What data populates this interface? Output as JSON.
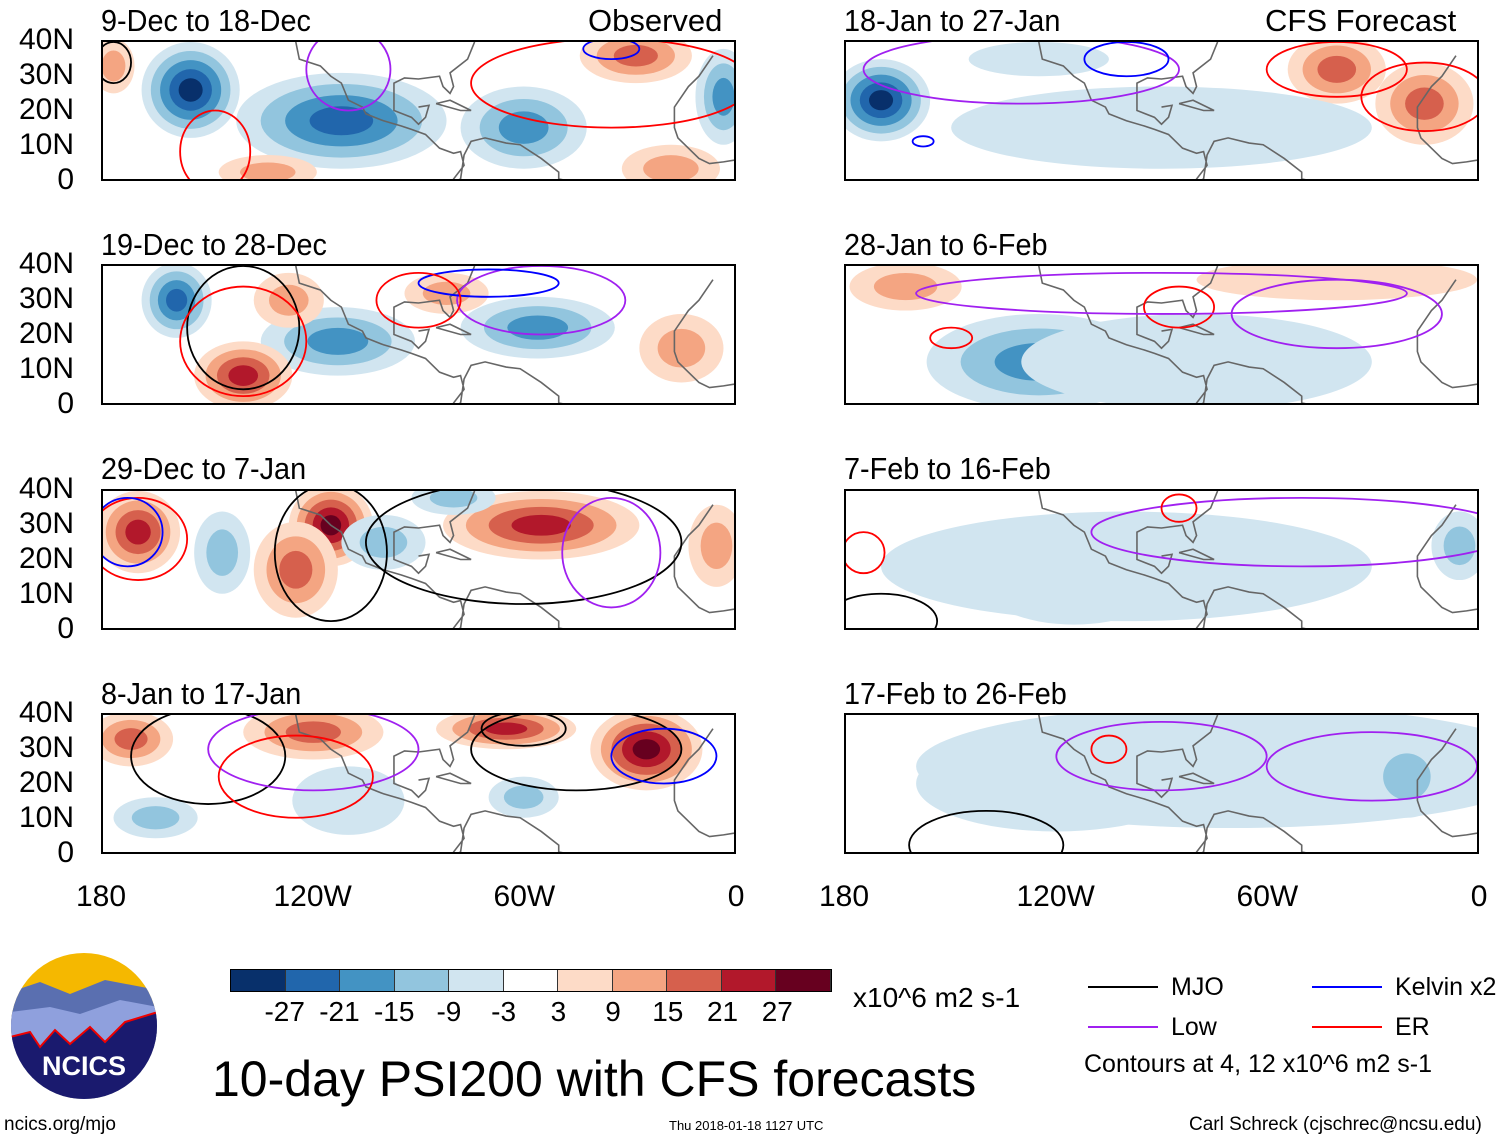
{
  "title": "10-day PSI200 with CFS forecasts",
  "observed_label": "Observed",
  "forecast_label": "CFS Forecast",
  "lat_labels": [
    "40N",
    "30N",
    "20N",
    "10N",
    "0"
  ],
  "lon_labels": [
    "180",
    "120W",
    "60W",
    "0"
  ],
  "colorbar": {
    "colors": [
      "#08306b",
      "#2166ac",
      "#4393c3",
      "#92c5de",
      "#d1e5f0",
      "#ffffff",
      "#fddbc7",
      "#f4a582",
      "#d6604d",
      "#b2182b",
      "#67001f"
    ],
    "labels": [
      "-27",
      "-21",
      "-15",
      "-9",
      "-3",
      "3",
      "9",
      "15",
      "21",
      "27"
    ],
    "units": "x10^6 m2 s-1"
  },
  "legend": {
    "items": [
      {
        "label": "MJO",
        "color": "#000000"
      },
      {
        "label": "Kelvin x2",
        "color": "#0000ff"
      },
      {
        "label": "Low",
        "color": "#a020f0"
      },
      {
        "label": "ER",
        "color": "#ff0000"
      }
    ],
    "note": "Contours at 4, 12 x10^6 m2 s-1"
  },
  "logo": {
    "text": "NCICS"
  },
  "footer": {
    "left": "ncics.org/mjo",
    "center": "Thu 2018-01-18 1127 UTC",
    "right": "Carl Schreck (cjschrec@ncsu.edu)"
  },
  "panels": [
    {
      "title": "9-Dec to 18-Dec",
      "features": [
        [
          -155,
          26,
          14,
          14,
          -27
        ],
        [
          -112,
          17,
          30,
          14,
          -21
        ],
        [
          -60,
          15,
          18,
          12,
          -15
        ],
        [
          -28,
          36,
          16,
          8,
          15
        ],
        [
          -3,
          24,
          8,
          14,
          -15
        ],
        [
          -18,
          3,
          14,
          7,
          9
        ],
        [
          -133,
          2,
          14,
          5,
          9
        ],
        [
          -177,
          33,
          6,
          8,
          9
        ]
      ],
      "contours": [
        [
          "ER",
          -148,
          8,
          10,
          12
        ],
        [
          "ER",
          -35,
          28,
          40,
          13
        ],
        [
          "Low",
          -110,
          32,
          12,
          12
        ],
        [
          "MJO",
          -177,
          34,
          5,
          6
        ],
        [
          "Kelvin",
          -35,
          38,
          8,
          3
        ]
      ]
    },
    {
      "title": "19-Dec to 28-Dec",
      "features": [
        [
          -159,
          30,
          10,
          11,
          -21
        ],
        [
          -113,
          18,
          22,
          10,
          -15
        ],
        [
          -56,
          22,
          22,
          9,
          -15
        ],
        [
          -140,
          8,
          14,
          10,
          21
        ],
        [
          -127,
          30,
          10,
          8,
          9
        ],
        [
          -82,
          32,
          12,
          6,
          9
        ],
        [
          -15,
          16,
          12,
          10,
          9
        ]
      ],
      "contours": [
        [
          "MJO",
          -140,
          22,
          16,
          18
        ],
        [
          "ER",
          -140,
          18,
          18,
          16
        ],
        [
          "Low",
          -55,
          30,
          24,
          10
        ],
        [
          "Kelvin",
          -70,
          35,
          20,
          4
        ],
        [
          "ER",
          -90,
          30,
          12,
          8
        ]
      ]
    },
    {
      "title": "29-Dec to 7-Jan",
      "features": [
        [
          -170,
          28,
          12,
          12,
          21
        ],
        [
          -115,
          30,
          12,
          12,
          27
        ],
        [
          -55,
          30,
          28,
          10,
          21
        ],
        [
          -125,
          17,
          12,
          14,
          15
        ],
        [
          -146,
          22,
          8,
          12,
          -9
        ],
        [
          -80,
          38,
          12,
          5,
          -9
        ],
        [
          -100,
          25,
          12,
          8,
          -9
        ],
        [
          -5,
          24,
          8,
          12,
          9
        ]
      ],
      "contours": [
        [
          "MJO",
          -115,
          22,
          16,
          20
        ],
        [
          "MJO",
          -60,
          25,
          45,
          18
        ],
        [
          "ER",
          -170,
          26,
          14,
          12
        ],
        [
          "Kelvin",
          -173,
          28,
          10,
          10
        ],
        [
          "Low",
          -35,
          22,
          14,
          16
        ]
      ]
    },
    {
      "title": "8-Jan to 17-Jan",
      "features": [
        [
          -172,
          33,
          12,
          8,
          15
        ],
        [
          -120,
          35,
          20,
          8,
          15
        ],
        [
          -25,
          30,
          16,
          12,
          27
        ],
        [
          -65,
          36,
          20,
          6,
          21
        ],
        [
          -60,
          16,
          10,
          6,
          -9
        ],
        [
          -165,
          10,
          12,
          6,
          -9
        ],
        [
          -110,
          15,
          16,
          10,
          -3
        ]
      ],
      "contours": [
        [
          "MJO",
          -150,
          28,
          22,
          14
        ],
        [
          "MJO",
          -45,
          30,
          30,
          12
        ],
        [
          "MJO",
          -60,
          36,
          12,
          5
        ],
        [
          "Low",
          -120,
          30,
          30,
          12
        ],
        [
          "Kelvin",
          -20,
          28,
          15,
          8
        ],
        [
          "ER",
          -125,
          22,
          22,
          12
        ]
      ]
    },
    {
      "title": "18-Jan to 27-Jan",
      "features": [
        [
          -170,
          23,
          14,
          12,
          -27
        ],
        [
          -40,
          32,
          14,
          10,
          15
        ],
        [
          -15,
          22,
          14,
          12,
          15
        ],
        [
          -90,
          15,
          60,
          12,
          -3
        ],
        [
          -125,
          35,
          20,
          5,
          -3
        ]
      ],
      "contours": [
        [
          "Low",
          -130,
          32,
          45,
          10
        ],
        [
          "Kelvin",
          -100,
          35,
          12,
          5
        ],
        [
          "ER",
          -40,
          32,
          20,
          8
        ],
        [
          "ER",
          -15,
          24,
          18,
          10
        ],
        [
          "Kelvin",
          -158,
          11,
          3,
          1.5
        ]
      ]
    },
    {
      "title": "28-Jan to 6-Feb",
      "features": [
        [
          -163,
          34,
          16,
          7,
          9
        ],
        [
          -125,
          12,
          32,
          14,
          -15
        ],
        [
          -80,
          12,
          50,
          14,
          -3
        ],
        [
          -40,
          36,
          40,
          6,
          3
        ]
      ],
      "contours": [
        [
          "ER",
          -150,
          19,
          6,
          3
        ],
        [
          "ER",
          -85,
          28,
          10,
          6
        ],
        [
          "Low",
          -90,
          32,
          70,
          6
        ],
        [
          "Low",
          -40,
          26,
          30,
          10
        ]
      ]
    },
    {
      "title": "7-Feb to 16-Feb",
      "features": [
        [
          -115,
          13,
          26,
          12,
          -9
        ],
        [
          -100,
          18,
          70,
          16,
          -3
        ],
        [
          -5,
          24,
          8,
          10,
          -9
        ]
      ],
      "contours": [
        [
          "MJO",
          -170,
          2,
          16,
          8
        ],
        [
          "Low",
          -50,
          28,
          60,
          10
        ],
        [
          "ER",
          -85,
          35,
          5,
          4
        ],
        [
          "ER",
          -175,
          22,
          6,
          6
        ]
      ]
    },
    {
      "title": "17-Feb to 26-Feb",
      "features": [
        [
          -125,
          18,
          16,
          9,
          -21
        ],
        [
          -120,
          20,
          40,
          14,
          -9
        ],
        [
          -70,
          25,
          90,
          18,
          -3
        ],
        [
          -20,
          22,
          12,
          12,
          -9
        ]
      ],
      "contours": [
        [
          "MJO",
          -140,
          2,
          22,
          10
        ],
        [
          "Low",
          -90,
          28,
          30,
          10
        ],
        [
          "Low",
          -30,
          25,
          30,
          10
        ],
        [
          "ER",
          -105,
          30,
          5,
          4
        ]
      ]
    }
  ]
}
